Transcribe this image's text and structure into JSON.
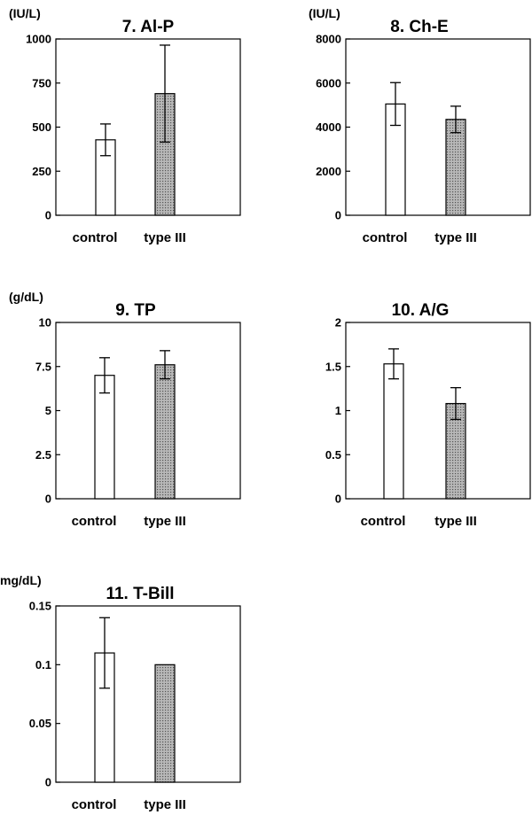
{
  "colors": {
    "control_fill": "#ffffff",
    "type3_fill": "#a9a9a9",
    "stroke": "#000000"
  },
  "chart_data": [
    {
      "type": "bar",
      "title": "7. Al-P",
      "ylabel": "(IU/L)",
      "categories": [
        "control",
        "type III"
      ],
      "values": [
        428,
        690
      ],
      "error": [
        90,
        275
      ],
      "ylim": [
        0,
        1000
      ],
      "yticks": [
        0,
        250,
        500,
        750,
        1000
      ],
      "ytick_labels": [
        "0",
        "250",
        "500",
        "750",
        "1000"
      ]
    },
    {
      "type": "bar",
      "title": "8. Ch-E",
      "ylabel": "(IU/L)",
      "categories": [
        "control",
        "type III"
      ],
      "values": [
        5050,
        4350
      ],
      "error": [
        970,
        600
      ],
      "ylim": [
        0,
        8000
      ],
      "yticks": [
        0,
        2000,
        4000,
        6000,
        8000
      ],
      "ytick_labels": [
        "0",
        "2000",
        "4000",
        "6000",
        "8000"
      ]
    },
    {
      "type": "bar",
      "title": "9. TP",
      "ylabel": "(g/dL)",
      "categories": [
        "control",
        "type III"
      ],
      "values": [
        7.0,
        7.6
      ],
      "error": [
        1.0,
        0.8
      ],
      "ylim": [
        0,
        10
      ],
      "yticks": [
        0,
        2.5,
        5,
        7.5,
        10
      ],
      "ytick_labels": [
        "0",
        "2.5",
        "5",
        "7.5",
        "10"
      ]
    },
    {
      "type": "bar",
      "title": "10. A/G",
      "ylabel": "",
      "categories": [
        "control",
        "type III"
      ],
      "values": [
        1.53,
        1.08
      ],
      "error": [
        0.17,
        0.18
      ],
      "ylim": [
        0,
        2
      ],
      "yticks": [
        0,
        0.5,
        1,
        1.5,
        2
      ],
      "ytick_labels": [
        "0",
        "0.5",
        "1",
        "1.5",
        "2"
      ]
    },
    {
      "type": "bar",
      "title": "11. T-Bill",
      "ylabel": "mg/dL)",
      "categories": [
        "control",
        "type III"
      ],
      "values": [
        0.11,
        0.1
      ],
      "error": [
        0.03,
        0
      ],
      "ylim": [
        0,
        0.15
      ],
      "yticks": [
        0,
        0.05,
        0.1,
        0.15
      ],
      "ytick_labels": [
        "0",
        "0.05",
        "0.1",
        "0.15"
      ]
    }
  ]
}
